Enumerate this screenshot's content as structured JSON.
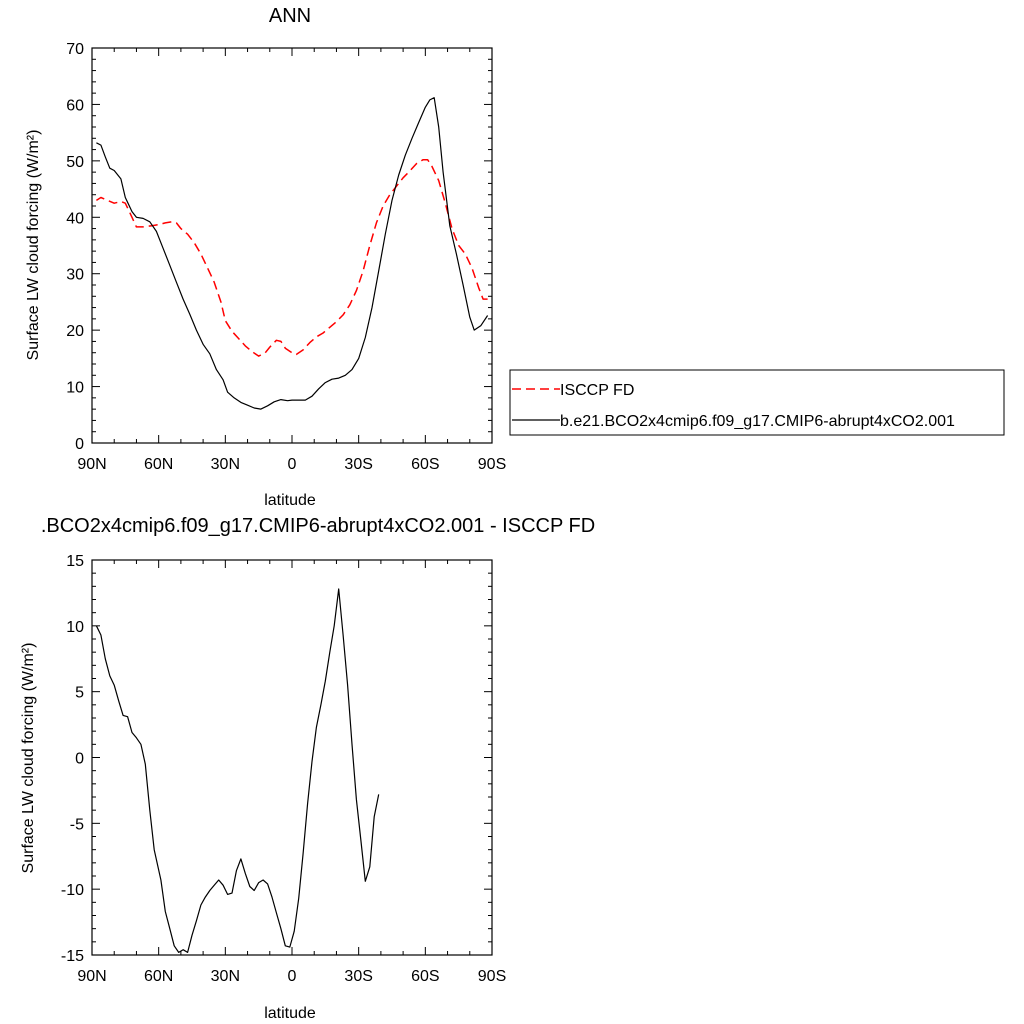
{
  "chart_data": [
    {
      "type": "line",
      "title": "ANN",
      "xlabel": "latitude",
      "ylabel": "Surface LW cloud forcing (W/m²)",
      "xlim": [
        90,
        -90
      ],
      "ylim": [
        0,
        70
      ],
      "yticks": [
        0,
        10,
        20,
        30,
        40,
        50,
        60,
        70
      ],
      "xticks": [
        {
          "value": 90,
          "label": "90N"
        },
        {
          "value": 60,
          "label": "60N"
        },
        {
          "value": 30,
          "label": "30N"
        },
        {
          "value": 0,
          "label": "0"
        },
        {
          "value": -30,
          "label": "30S"
        },
        {
          "value": -60,
          "label": "60S"
        },
        {
          "value": -90,
          "label": "90S"
        }
      ],
      "legend": "right",
      "series": [
        {
          "name": "ISCCP FD",
          "color": "#ff0000",
          "style": "dashed",
          "points": [
            [
              88,
              43
            ],
            [
              86,
              43.5
            ],
            [
              83,
              43
            ],
            [
              80,
              42.5
            ],
            [
              77,
              42.8
            ],
            [
              75,
              42.5
            ],
            [
              72,
              40
            ],
            [
              70,
              38.3
            ],
            [
              67,
              38.3
            ],
            [
              63,
              38.5
            ],
            [
              60,
              38.7
            ],
            [
              57,
              39
            ],
            [
              54,
              39.2
            ],
            [
              52,
              39
            ],
            [
              50,
              38
            ],
            [
              47,
              37
            ],
            [
              44,
              35.5
            ],
            [
              41,
              33.5
            ],
            [
              38,
              31
            ],
            [
              35,
              28.5
            ],
            [
              32,
              25
            ],
            [
              30,
              21.7
            ],
            [
              27,
              19.8
            ],
            [
              24,
              18.5
            ],
            [
              21,
              17.2
            ],
            [
              18,
              16.2
            ],
            [
              15,
              15.4
            ],
            [
              12,
              16
            ],
            [
              10,
              17
            ],
            [
              7,
              18.2
            ],
            [
              5,
              18
            ],
            [
              3,
              16.8
            ],
            [
              0,
              16
            ],
            [
              -2,
              15.7
            ],
            [
              -5,
              16.5
            ],
            [
              -8,
              17.8
            ],
            [
              -11,
              18.8
            ],
            [
              -14,
              19.5
            ],
            [
              -17,
              20.5
            ],
            [
              -20,
              21.5
            ],
            [
              -23,
              22.7
            ],
            [
              -26,
              24.5
            ],
            [
              -29,
              27
            ],
            [
              -32,
              30.5
            ],
            [
              -35,
              35
            ],
            [
              -38,
              39
            ],
            [
              -41,
              42
            ],
            [
              -44,
              44
            ],
            [
              -47,
              45.5
            ],
            [
              -50,
              47
            ],
            [
              -53,
              48.2
            ],
            [
              -56,
              49.5
            ],
            [
              -59,
              50.2
            ],
            [
              -61,
              50.2
            ],
            [
              -63,
              49
            ],
            [
              -66,
              46.5
            ],
            [
              -69,
              42.5
            ],
            [
              -72,
              38
            ],
            [
              -75,
              35
            ],
            [
              -78,
              33.5
            ],
            [
              -81,
              31
            ],
            [
              -84,
              27.5
            ],
            [
              -86,
              25.5
            ],
            [
              -88,
              25.5
            ]
          ]
        },
        {
          "name": "b.e21.BCO2x4cmip6.f09_g17.CMIP6-abrupt4xCO2.001",
          "color": "#000000",
          "style": "solid",
          "points": [
            [
              88,
              53.2
            ],
            [
              86,
              52.8
            ],
            [
              84,
              50.7
            ],
            [
              82,
              48.7
            ],
            [
              80,
              48.3
            ],
            [
              77,
              46.8
            ],
            [
              75,
              43.5
            ],
            [
              72,
              41
            ],
            [
              70,
              40
            ],
            [
              67,
              39.8
            ],
            [
              64,
              39.2
            ],
            [
              61,
              37.5
            ],
            [
              58,
              34.5
            ],
            [
              55,
              31.5
            ],
            [
              52,
              28.5
            ],
            [
              49,
              25.5
            ],
            [
              46,
              22.8
            ],
            [
              43,
              20
            ],
            [
              40,
              17.5
            ],
            [
              37,
              15.8
            ],
            [
              34,
              13
            ],
            [
              31,
              11.2
            ],
            [
              29,
              9
            ],
            [
              26,
              8
            ],
            [
              23,
              7.2
            ],
            [
              20,
              6.7
            ],
            [
              17,
              6.2
            ],
            [
              14,
              6
            ],
            [
              11,
              6.6
            ],
            [
              8,
              7.3
            ],
            [
              5,
              7.7
            ],
            [
              2,
              7.5
            ],
            [
              0,
              7.6
            ],
            [
              -3,
              7.6
            ],
            [
              -6,
              7.6
            ],
            [
              -9,
              8.3
            ],
            [
              -12,
              9.6
            ],
            [
              -15,
              10.7
            ],
            [
              -18,
              11.3
            ],
            [
              -21,
              11.5
            ],
            [
              -24,
              12
            ],
            [
              -27,
              13
            ],
            [
              -30,
              15
            ],
            [
              -33,
              18.7
            ],
            [
              -36,
              24
            ],
            [
              -39,
              30.5
            ],
            [
              -42,
              37
            ],
            [
              -45,
              43
            ],
            [
              -48,
              47.5
            ],
            [
              -51,
              51
            ],
            [
              -54,
              54
            ],
            [
              -57,
              56.8
            ],
            [
              -60,
              59.5
            ],
            [
              -62,
              60.8
            ],
            [
              -64,
              61.2
            ],
            [
              -66,
              56
            ],
            [
              -68,
              48
            ],
            [
              -71,
              38.5
            ],
            [
              -74,
              33.5
            ],
            [
              -77,
              28
            ],
            [
              -80,
              22.3
            ],
            [
              -82,
              20
            ],
            [
              -85,
              20.8
            ],
            [
              -88,
              22.6
            ]
          ]
        }
      ]
    },
    {
      "type": "line",
      "title": ".BCO2x4cmip6.f09_g17.CMIP6-abrupt4xCO2.001 - ISCCP FD",
      "xlabel": "latitude",
      "ylabel": "Surface LW cloud forcing (W/m²)",
      "xlim": [
        90,
        -90
      ],
      "ylim": [
        -15,
        15
      ],
      "yticks": [
        -15,
        -10,
        -5,
        0,
        5,
        10,
        15
      ],
      "xticks": [
        {
          "value": 90,
          "label": "90N"
        },
        {
          "value": 60,
          "label": "60N"
        },
        {
          "value": 30,
          "label": "30N"
        },
        {
          "value": 0,
          "label": "0"
        },
        {
          "value": -30,
          "label": "30S"
        },
        {
          "value": -60,
          "label": "60S"
        },
        {
          "value": -90,
          "label": "90S"
        }
      ],
      "series": [
        {
          "color": "#000000",
          "style": "solid",
          "points": [
            [
              88,
              10
            ],
            [
              86,
              9.3
            ],
            [
              84,
              7.5
            ],
            [
              82,
              6.2
            ],
            [
              80,
              5.5
            ],
            [
              78,
              4.3
            ],
            [
              76,
              3.2
            ],
            [
              74,
              3.1
            ],
            [
              72,
              1.9
            ],
            [
              70,
              1.5
            ],
            [
              68,
              1
            ],
            [
              66,
              -0.5
            ],
            [
              64,
              -4
            ],
            [
              62,
              -7
            ],
            [
              59,
              -9.3
            ],
            [
              57,
              -11.7
            ],
            [
              55,
              -13
            ],
            [
              53,
              -14.3
            ],
            [
              51,
              -14.8
            ],
            [
              49,
              -14.6
            ],
            [
              47,
              -14.8
            ],
            [
              45,
              -13.5
            ],
            [
              43,
              -12.4
            ],
            [
              41,
              -11.2
            ],
            [
              39,
              -10.6
            ],
            [
              37,
              -10.1
            ],
            [
              35,
              -9.7
            ],
            [
              33,
              -9.3
            ],
            [
              31,
              -9.7
            ],
            [
              29,
              -10.4
            ],
            [
              27,
              -10.3
            ],
            [
              25,
              -8.6
            ],
            [
              23,
              -7.7
            ],
            [
              21,
              -8.8
            ],
            [
              19,
              -9.8
            ],
            [
              17,
              -10.1
            ],
            [
              15,
              -9.5
            ],
            [
              13,
              -9.3
            ],
            [
              11,
              -9.6
            ],
            [
              9,
              -10.6
            ],
            [
              7,
              -11.8
            ],
            [
              5,
              -13
            ],
            [
              3,
              -14.3
            ],
            [
              1,
              -14.4
            ],
            [
              -1,
              -13.2
            ],
            [
              -3,
              -10.7
            ],
            [
              -5,
              -7.3
            ],
            [
              -7,
              -3.5
            ],
            [
              -9,
              -0.3
            ],
            [
              -11,
              2.3
            ],
            [
              -13,
              4
            ],
            [
              -15,
              5.8
            ],
            [
              -17,
              8
            ],
            [
              -19,
              10
            ],
            [
              -21,
              12.8
            ],
            [
              -23,
              9.3
            ],
            [
              -25,
              5.5
            ],
            [
              -27,
              1
            ],
            [
              -29,
              -3.2
            ],
            [
              -31,
              -6.3
            ],
            [
              -33,
              -9.4
            ],
            [
              -35,
              -8.3
            ],
            [
              -37,
              -4.5
            ],
            [
              -39,
              -2.8
            ]
          ]
        }
      ]
    }
  ]
}
